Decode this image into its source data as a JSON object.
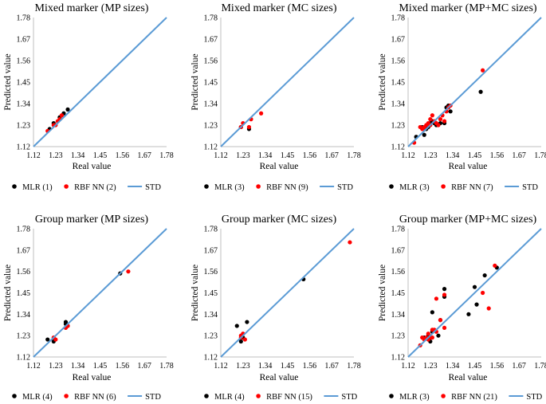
{
  "colors": {
    "mlr": "#000000",
    "rbf": "#ff0000",
    "std": "#5b9bd5"
  },
  "chart_data": [
    {
      "type": "scatter",
      "title": "Mixed marker (MP sizes)",
      "xlabel": "Real value",
      "ylabel": "Predicted value",
      "ticks": [
        "1.12",
        "1.23",
        "1.34",
        "1.45",
        "1.56",
        "1.67",
        "1.78"
      ],
      "xlim": [
        1.12,
        1.78
      ],
      "ylim": [
        1.12,
        1.78
      ],
      "series": [
        {
          "key": "mlr",
          "name": "MLR (1)",
          "points": [
            [
              1.2,
              1.21
            ],
            [
              1.22,
              1.24
            ],
            [
              1.25,
              1.27
            ],
            [
              1.27,
              1.29
            ],
            [
              1.29,
              1.31
            ]
          ]
        },
        {
          "key": "rbf",
          "name": "RBF NN (2)",
          "points": [
            [
              1.19,
              1.2
            ],
            [
              1.22,
              1.23
            ],
            [
              1.23,
              1.23
            ],
            [
              1.24,
              1.25
            ],
            [
              1.25,
              1.26
            ],
            [
              1.26,
              1.28
            ]
          ]
        },
        {
          "key": "std",
          "name": "STD",
          "line": [
            [
              1.12,
              1.12
            ],
            [
              1.78,
              1.78
            ]
          ]
        }
      ]
    },
    {
      "type": "scatter",
      "title": "Mixed marker (MC sizes)",
      "xlabel": "Real value",
      "ylabel": "Predicted value",
      "ticks": [
        "1.12",
        "1.23",
        "1.34",
        "1.45",
        "1.56",
        "1.67",
        "1.78"
      ],
      "xlim": [
        1.12,
        1.78
      ],
      "ylim": [
        1.12,
        1.78
      ],
      "series": [
        {
          "key": "mlr",
          "name": "MLR (3)",
          "points": [
            [
              1.22,
              1.22
            ],
            [
              1.26,
              1.21
            ]
          ]
        },
        {
          "key": "rbf",
          "name": "RBF NN (9)",
          "points": [
            [
              1.22,
              1.22
            ],
            [
              1.23,
              1.24
            ],
            [
              1.26,
              1.22
            ],
            [
              1.27,
              1.26
            ],
            [
              1.32,
              1.29
            ]
          ]
        },
        {
          "key": "std",
          "name": "STD",
          "line": [
            [
              1.12,
              1.12
            ],
            [
              1.78,
              1.78
            ]
          ]
        }
      ]
    },
    {
      "type": "scatter",
      "title": "Mixed marker (MP+MC sizes)",
      "xlabel": "Real value",
      "ylabel": "Predicted value",
      "ticks": [
        "1.12",
        "1.23",
        "1.34",
        "1.45",
        "1.56",
        "1.67",
        "1.78"
      ],
      "xlim": [
        1.12,
        1.78
      ],
      "ylim": [
        1.12,
        1.78
      ],
      "series": [
        {
          "key": "mlr",
          "name": "MLR (3)",
          "points": [
            [
              1.16,
              1.17
            ],
            [
              1.19,
              1.22
            ],
            [
              1.2,
              1.18
            ],
            [
              1.21,
              1.21
            ],
            [
              1.22,
              1.22
            ],
            [
              1.23,
              1.24
            ],
            [
              1.24,
              1.25
            ],
            [
              1.25,
              1.24
            ],
            [
              1.26,
              1.23
            ],
            [
              1.28,
              1.24
            ],
            [
              1.3,
              1.24
            ],
            [
              1.31,
              1.32
            ],
            [
              1.32,
              1.33
            ],
            [
              1.33,
              1.3
            ],
            [
              1.48,
              1.4
            ]
          ]
        },
        {
          "key": "rbf",
          "name": "RBF NN (7)",
          "points": [
            [
              1.15,
              1.14
            ],
            [
              1.18,
              1.22
            ],
            [
              1.19,
              1.21
            ],
            [
              1.2,
              1.22
            ],
            [
              1.21,
              1.23
            ],
            [
              1.22,
              1.24
            ],
            [
              1.23,
              1.23
            ],
            [
              1.23,
              1.26
            ],
            [
              1.24,
              1.28
            ],
            [
              1.25,
              1.25
            ],
            [
              1.26,
              1.24
            ],
            [
              1.27,
              1.23
            ],
            [
              1.28,
              1.26
            ],
            [
              1.29,
              1.28
            ],
            [
              1.3,
              1.25
            ],
            [
              1.31,
              1.3
            ],
            [
              1.32,
              1.32
            ],
            [
              1.33,
              1.33
            ],
            [
              1.49,
              1.51
            ]
          ]
        },
        {
          "key": "std",
          "name": "STD",
          "line": [
            [
              1.12,
              1.12
            ],
            [
              1.78,
              1.78
            ]
          ]
        }
      ]
    },
    {
      "type": "scatter",
      "title": "Group marker (MP sizes)",
      "xlabel": "Real value",
      "ylabel": "Predicted value",
      "ticks": [
        "1.12",
        "1.23",
        "1.34",
        "1.45",
        "1.56",
        "1.67",
        "1.78"
      ],
      "xlim": [
        1.12,
        1.78
      ],
      "ylim": [
        1.12,
        1.78
      ],
      "series": [
        {
          "key": "mlr",
          "name": "MLR (4)",
          "points": [
            [
              1.19,
              1.21
            ],
            [
              1.22,
              1.2
            ],
            [
              1.28,
              1.29
            ],
            [
              1.28,
              1.3
            ],
            [
              1.29,
              1.28
            ],
            [
              1.55,
              1.55
            ]
          ]
        },
        {
          "key": "rbf",
          "name": "RBF NN (6)",
          "points": [
            [
              1.22,
              1.22
            ],
            [
              1.23,
              1.21
            ],
            [
              1.28,
              1.27
            ],
            [
              1.29,
              1.28
            ],
            [
              1.59,
              1.56
            ]
          ]
        },
        {
          "key": "std",
          "name": "STD",
          "line": [
            [
              1.12,
              1.12
            ],
            [
              1.78,
              1.78
            ]
          ]
        }
      ]
    },
    {
      "type": "scatter",
      "title": "Group marker (MC sizes)",
      "xlabel": "Real value",
      "ylabel": "Predicted value",
      "ticks": [
        "1.12",
        "1.23",
        "1.34",
        "1.45",
        "1.56",
        "1.67",
        "1.78"
      ],
      "xlim": [
        1.12,
        1.78
      ],
      "ylim": [
        1.12,
        1.78
      ],
      "series": [
        {
          "key": "mlr",
          "name": "MLR (4)",
          "points": [
            [
              1.2,
              1.28
            ],
            [
              1.22,
              1.2
            ],
            [
              1.23,
              1.22
            ],
            [
              1.25,
              1.3
            ],
            [
              1.53,
              1.52
            ]
          ]
        },
        {
          "key": "rbf",
          "name": "RBF NN (15)",
          "points": [
            [
              1.22,
              1.23
            ],
            [
              1.22,
              1.22
            ],
            [
              1.23,
              1.24
            ],
            [
              1.24,
              1.21
            ],
            [
              1.76,
              1.71
            ]
          ]
        },
        {
          "key": "std",
          "name": "STD",
          "line": [
            [
              1.12,
              1.12
            ],
            [
              1.78,
              1.78
            ]
          ]
        }
      ]
    },
    {
      "type": "scatter",
      "title": "Group marker (MP+MC sizes)",
      "xlabel": "Real value",
      "ylabel": "Predicted value",
      "ticks": [
        "1.12",
        "1.23",
        "1.34",
        "1.45",
        "1.56",
        "1.67",
        "1.78"
      ],
      "xlim": [
        1.12,
        1.78
      ],
      "ylim": [
        1.12,
        1.78
      ],
      "series": [
        {
          "key": "mlr",
          "name": "MLR (3)",
          "points": [
            [
              1.2,
              1.22
            ],
            [
              1.22,
              1.23
            ],
            [
              1.23,
              1.2
            ],
            [
              1.24,
              1.25
            ],
            [
              1.24,
              1.35
            ],
            [
              1.27,
              1.23
            ],
            [
              1.28,
              1.31
            ],
            [
              1.3,
              1.43
            ],
            [
              1.3,
              1.47
            ],
            [
              1.42,
              1.34
            ],
            [
              1.45,
              1.48
            ],
            [
              1.46,
              1.39
            ],
            [
              1.5,
              1.54
            ],
            [
              1.56,
              1.58
            ]
          ]
        },
        {
          "key": "rbf",
          "name": "RBF NN (21)",
          "points": [
            [
              1.18,
              1.18
            ],
            [
              1.19,
              1.22
            ],
            [
              1.2,
              1.21
            ],
            [
              1.21,
              1.22
            ],
            [
              1.22,
              1.21
            ],
            [
              1.22,
              1.24
            ],
            [
              1.23,
              1.22
            ],
            [
              1.24,
              1.22
            ],
            [
              1.24,
              1.26
            ],
            [
              1.25,
              1.26
            ],
            [
              1.26,
              1.25
            ],
            [
              1.26,
              1.42
            ],
            [
              1.28,
              1.31
            ],
            [
              1.3,
              1.44
            ],
            [
              1.3,
              1.27
            ],
            [
              1.49,
              1.45
            ],
            [
              1.52,
              1.37
            ],
            [
              1.55,
              1.59
            ]
          ]
        },
        {
          "key": "std",
          "name": "STD",
          "line": [
            [
              1.12,
              1.12
            ],
            [
              1.78,
              1.78
            ]
          ]
        }
      ]
    }
  ]
}
